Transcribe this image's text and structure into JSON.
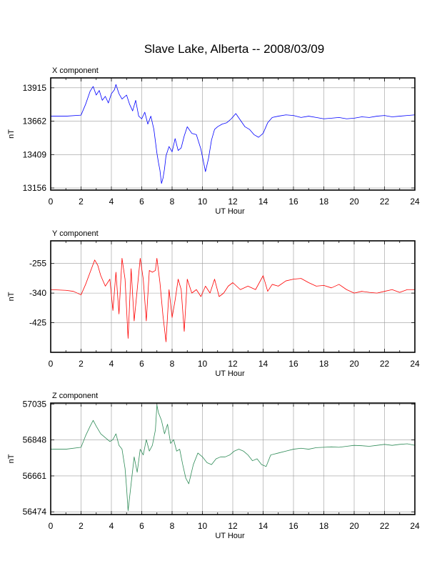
{
  "title": "Slave Lake, Alberta -- 2008/03/09",
  "chart_data": [
    {
      "type": "line",
      "panel_label": "X component",
      "xlabel": "UT Hour",
      "ylabel": "nT",
      "xlim": [
        0,
        24
      ],
      "ylim": [
        13140,
        13990
      ],
      "x_ticks": [
        "0",
        "2",
        "4",
        "6",
        "8",
        "10",
        "12",
        "14",
        "16",
        "18",
        "20",
        "22",
        "24"
      ],
      "y_ticks": [
        13156,
        13409,
        13662,
        13915
      ],
      "color": "#0000ff",
      "grid": true,
      "series": [
        {
          "x": [
            0,
            1,
            2,
            2.3,
            2.6,
            2.8,
            3,
            3.2,
            3.4,
            3.6,
            3.8,
            4,
            4.2,
            4.3,
            4.5,
            4.7,
            5,
            5.2,
            5.4,
            5.6,
            5.8,
            6,
            6.2,
            6.4,
            6.6,
            6.8,
            7,
            7.1,
            7.2,
            7.3,
            7.4,
            7.5,
            7.6,
            7.8,
            8,
            8.2,
            8.4,
            8.6,
            8.8,
            9,
            9.3,
            9.6,
            9.9,
            10.2,
            10.4,
            10.6,
            10.8,
            11,
            11.3,
            11.6,
            11.9,
            12.2,
            12.5,
            12.8,
            13.1,
            13.4,
            13.7,
            14,
            14.3,
            14.6,
            15,
            15.5,
            16,
            16.5,
            17,
            17.5,
            18,
            18.5,
            19,
            19.5,
            20,
            20.5,
            21,
            21.5,
            22,
            22.5,
            23,
            23.5,
            24
          ],
          "y": [
            13700,
            13700,
            13708,
            13790,
            13890,
            13925,
            13860,
            13895,
            13820,
            13850,
            13800,
            13870,
            13900,
            13940,
            13870,
            13830,
            13860,
            13790,
            13740,
            13820,
            13700,
            13680,
            13730,
            13640,
            13700,
            13600,
            13420,
            13350,
            13290,
            13190,
            13230,
            13300,
            13400,
            13470,
            13430,
            13530,
            13440,
            13460,
            13550,
            13620,
            13570,
            13560,
            13450,
            13280,
            13380,
            13520,
            13600,
            13620,
            13640,
            13650,
            13680,
            13720,
            13670,
            13620,
            13600,
            13560,
            13540,
            13570,
            13650,
            13690,
            13700,
            13710,
            13705,
            13690,
            13700,
            13690,
            13680,
            13685,
            13690,
            13680,
            13685,
            13695,
            13690,
            13700,
            13705,
            13695,
            13700,
            13705,
            13710
          ]
        }
      ]
    },
    {
      "type": "line",
      "panel_label": "Y component",
      "xlabel": "UT Hour",
      "ylabel": "nT",
      "xlim": [
        0,
        24
      ],
      "ylim": [
        -510,
        -190
      ],
      "x_ticks": [
        "0",
        "2",
        "4",
        "6",
        "8",
        "10",
        "12",
        "14",
        "16",
        "18",
        "20",
        "22",
        "24"
      ],
      "y_ticks": [
        -255,
        -340,
        -425
      ],
      "color": "#ff0000",
      "grid": true,
      "series": [
        {
          "x": [
            0,
            1,
            1.5,
            2,
            2.3,
            2.6,
            2.9,
            3.1,
            3.3,
            3.6,
            3.9,
            4.1,
            4.3,
            4.5,
            4.7,
            4.9,
            5.1,
            5.3,
            5.5,
            5.7,
            5.9,
            6.1,
            6.3,
            6.5,
            6.7,
            6.9,
            7,
            7.2,
            7.4,
            7.6,
            7.8,
            8,
            8.2,
            8.4,
            8.6,
            8.8,
            9,
            9.3,
            9.6,
            9.9,
            10.2,
            10.5,
            10.8,
            11.1,
            11.4,
            11.7,
            12,
            12.5,
            13,
            13.5,
            14,
            14.3,
            14.6,
            15,
            15.5,
            16,
            16.5,
            17,
            17.5,
            18,
            18.5,
            19,
            19.5,
            20,
            20.5,
            21,
            21.5,
            22,
            22.5,
            23,
            23.5,
            24
          ],
          "y": [
            -330,
            -332,
            -335,
            -345,
            -315,
            -280,
            -245,
            -260,
            -290,
            -320,
            -300,
            -390,
            -280,
            -400,
            -240,
            -300,
            -470,
            -270,
            -420,
            -330,
            -240,
            -300,
            -420,
            -275,
            -280,
            -275,
            -240,
            -310,
            -405,
            -480,
            -330,
            -410,
            -360,
            -300,
            -330,
            -450,
            -300,
            -340,
            -330,
            -350,
            -320,
            -340,
            -300,
            -350,
            -340,
            -320,
            -310,
            -330,
            -320,
            -330,
            -290,
            -335,
            -315,
            -320,
            -305,
            -300,
            -298,
            -310,
            -320,
            -318,
            -325,
            -315,
            -330,
            -340,
            -335,
            -338,
            -340,
            -335,
            -330,
            -338,
            -330,
            -330
          ]
        }
      ]
    },
    {
      "type": "line",
      "panel_label": "Z component",
      "xlabel": "UT Hour",
      "ylabel": "nT",
      "xlim": [
        0,
        24
      ],
      "ylim": [
        56460,
        57040
      ],
      "x_ticks": [
        "0",
        "2",
        "4",
        "6",
        "8",
        "10",
        "12",
        "14",
        "16",
        "18",
        "20",
        "22",
        "24"
      ],
      "y_ticks": [
        56474,
        56661,
        56848,
        57035
      ],
      "color": "#2e8b57",
      "grid": true,
      "series": [
        {
          "x": [
            0,
            1,
            2,
            2.3,
            2.6,
            2.8,
            3,
            3.3,
            3.6,
            3.9,
            4.1,
            4.3,
            4.5,
            4.7,
            4.9,
            5,
            5.1,
            5.3,
            5.5,
            5.7,
            5.9,
            6.1,
            6.3,
            6.5,
            6.7,
            6.9,
            7,
            7.1,
            7.3,
            7.5,
            7.7,
            7.9,
            8.1,
            8.3,
            8.5,
            8.7,
            8.9,
            9.1,
            9.4,
            9.7,
            10,
            10.3,
            10.6,
            10.9,
            11.2,
            11.5,
            11.8,
            12.1,
            12.4,
            12.7,
            13,
            13.3,
            13.6,
            13.9,
            14.2,
            14.5,
            15,
            15.5,
            16,
            16.5,
            17,
            17.5,
            18,
            18.5,
            19,
            19.5,
            20,
            20.5,
            21,
            21.5,
            22,
            22.5,
            23,
            23.5,
            24
          ],
          "y": [
            56800,
            56800,
            56810,
            56870,
            56920,
            56950,
            56920,
            56880,
            56860,
            56840,
            56850,
            56880,
            56820,
            56800,
            56700,
            56600,
            56480,
            56620,
            56760,
            56680,
            56800,
            56770,
            56850,
            56790,
            56820,
            56900,
            57030,
            56990,
            56950,
            56880,
            56930,
            56830,
            56850,
            56790,
            56800,
            56720,
            56650,
            56620,
            56720,
            56780,
            56760,
            56730,
            56720,
            56750,
            56760,
            56760,
            56770,
            56790,
            56800,
            56790,
            56770,
            56740,
            56750,
            56720,
            56710,
            56770,
            56780,
            56790,
            56800,
            56805,
            56800,
            56808,
            56810,
            56812,
            56810,
            56815,
            56820,
            56818,
            56815,
            56820,
            56825,
            56820,
            56825,
            56828,
            56820
          ]
        }
      ]
    }
  ]
}
